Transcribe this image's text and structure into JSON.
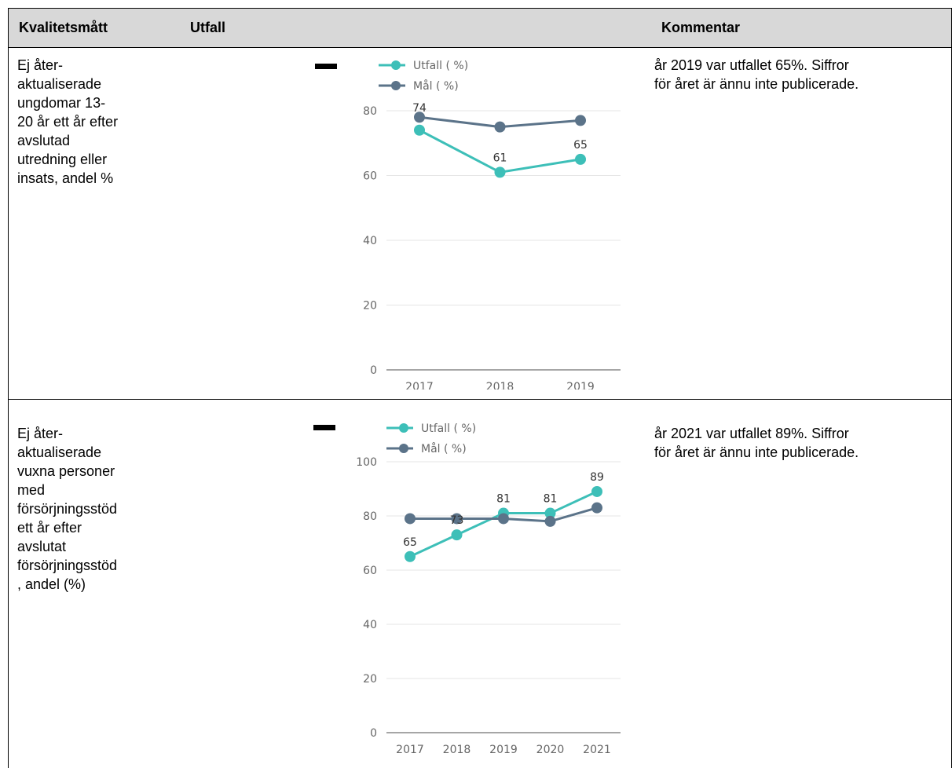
{
  "header": {
    "col1": "Kvalitetsmått",
    "col2": "Utfall",
    "col3": "Kommentar"
  },
  "rows": [
    {
      "measure_lines": [
        "Ej åter-",
        "aktualiserade",
        "ungdomar 13-",
        "20 år ett år efter",
        "avslutad",
        "utredning eller",
        "insats, andel %"
      ],
      "comment_lines": [
        "år 2019 var utfallet 65%. Siffror",
        "för året är ännu inte publicerade."
      ]
    },
    {
      "measure_lines": [
        "Ej åter-",
        "aktualiserade",
        "vuxna personer",
        "med",
        "försörjningsstöd",
        "ett år efter",
        "avslutat",
        "försörjningsstöd",
        ", andel (%)"
      ],
      "comment_lines": [
        "år 2021 var utfallet 89%. Siffror",
        "för året är ännu inte publicerade."
      ]
    }
  ],
  "colors": {
    "utfall": "#3dbfb8",
    "mal": "#5b7389",
    "grid": "#e6e6e6",
    "axis": "#888888",
    "tick": "#666666",
    "header_bg": "#d8d8d8"
  },
  "chart_data": [
    {
      "type": "line",
      "categories": [
        "2017",
        "2018",
        "2019"
      ],
      "series": [
        {
          "name": "Utfall ( %)",
          "values": [
            74,
            61,
            65
          ],
          "labels": [
            "74",
            "61",
            "65"
          ]
        },
        {
          "name": "Mål ( %)",
          "values": [
            78,
            75,
            77
          ],
          "labels": [
            "",
            "",
            ""
          ]
        }
      ],
      "yticks": [
        0,
        20,
        40,
        60,
        80
      ],
      "ylim": [
        0,
        88
      ],
      "legend": "top-left",
      "grid": true
    },
    {
      "type": "line",
      "categories": [
        "2017",
        "2018",
        "2019",
        "2020",
        "2021"
      ],
      "series": [
        {
          "name": "Utfall ( %)",
          "values": [
            65,
            73,
            81,
            81,
            89
          ],
          "labels": [
            "65",
            "73",
            "81",
            "81",
            "89"
          ]
        },
        {
          "name": "Mål ( %)",
          "values": [
            79,
            79,
            79,
            78,
            83
          ],
          "labels": [
            "",
            "",
            "",
            "",
            ""
          ]
        }
      ],
      "yticks": [
        0,
        20,
        40,
        60,
        80,
        100
      ],
      "ylim": [
        0,
        100
      ],
      "legend": "top-left",
      "grid": true
    }
  ]
}
